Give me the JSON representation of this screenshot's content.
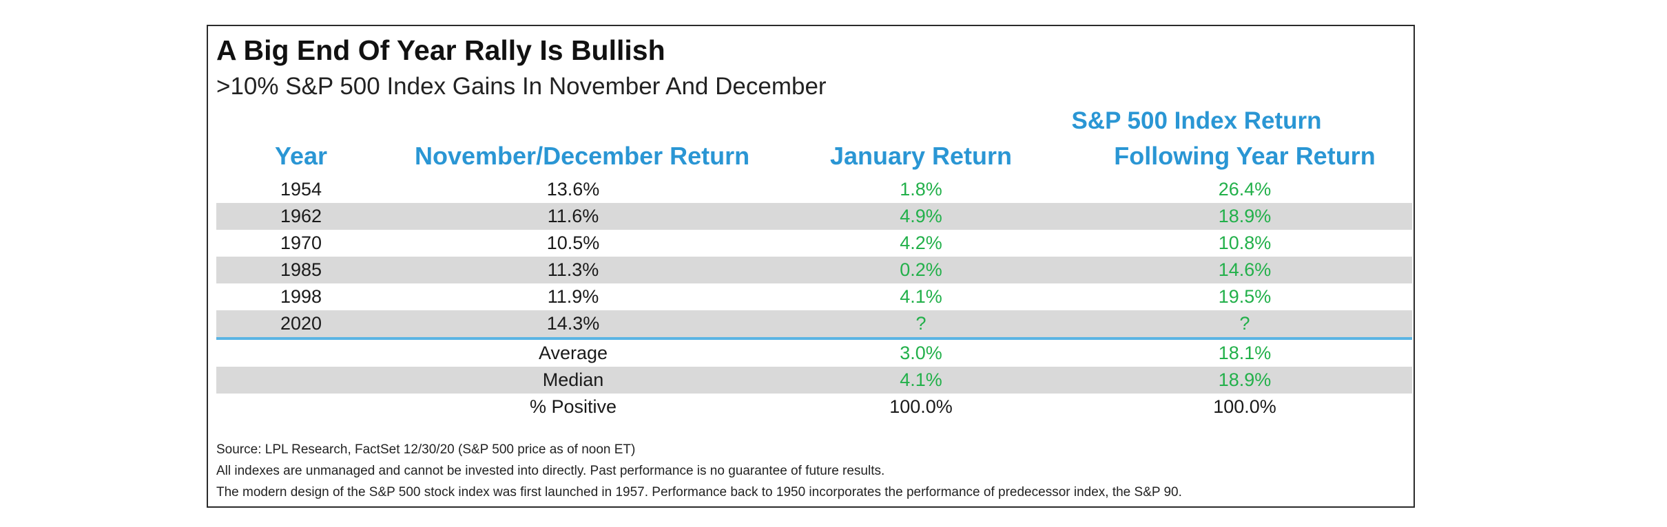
{
  "chart_data": {
    "type": "table",
    "title": "A Big End Of Year Rally Is Bullish",
    "subtitle": ">10% S&P 500 Index Gains In November And December",
    "group_header": "S&P 500 Index Return",
    "columns": [
      "Year",
      "November/December Return",
      "January Return",
      "Following Year Return"
    ],
    "rows": [
      {
        "year": "1954",
        "nov_dec": "13.6%",
        "january": "1.8%",
        "following": "26.4%",
        "shaded": false
      },
      {
        "year": "1962",
        "nov_dec": "11.6%",
        "january": "4.9%",
        "following": "18.9%",
        "shaded": true
      },
      {
        "year": "1970",
        "nov_dec": "10.5%",
        "january": "4.2%",
        "following": "10.8%",
        "shaded": false
      },
      {
        "year": "1985",
        "nov_dec": "11.3%",
        "january": "0.2%",
        "following": "14.6%",
        "shaded": true
      },
      {
        "year": "1998",
        "nov_dec": "11.9%",
        "january": "4.1%",
        "following": "19.5%",
        "shaded": false
      },
      {
        "year": "2020",
        "nov_dec": "14.3%",
        "january": "?",
        "following": "?",
        "shaded": true
      }
    ],
    "summary": [
      {
        "label": "Average",
        "january": "3.0%",
        "following": "18.1%",
        "shaded": false,
        "value_color": "green"
      },
      {
        "label": "Median",
        "january": "4.1%",
        "following": "18.9%",
        "shaded": true,
        "value_color": "green"
      },
      {
        "label": "% Positive",
        "january": "100.0%",
        "following": "100.0%",
        "shaded": false,
        "value_color": "dark"
      }
    ],
    "notes": [
      "Source: LPL Research, FactSet 12/30/20 (S&P 500 price as of noon ET)",
      "All indexes are unmanaged and cannot be invested into directly. Past performance is no guarantee of future results.",
      "The modern design of the S&P 500 stock index was first launched in 1957. Performance back to 1950 incorporates the performance of predecessor index, the S&P 90."
    ],
    "colors": {
      "header": "#2a96d4",
      "positive_value": "#22b04a",
      "shaded_row": "#d9d9d9",
      "divider": "#5ab4e3"
    }
  }
}
